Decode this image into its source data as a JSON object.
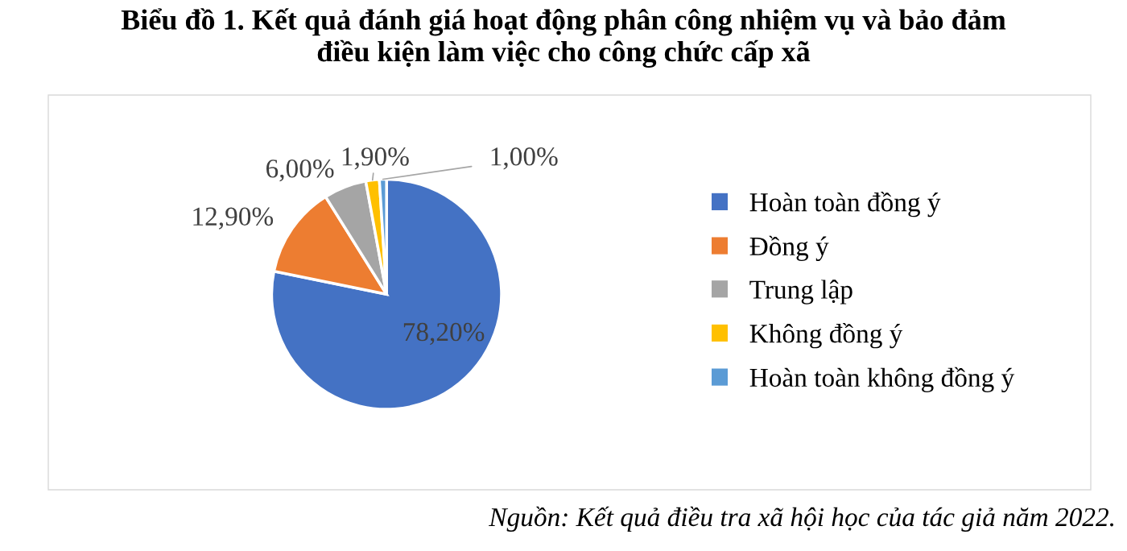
{
  "chart_data": {
    "type": "pie",
    "title": "Biểu đồ 1. Kết quả đánh giá hoạt động phân công nhiệm vụ và bảo đảm\nđiều kiện làm việc cho công chức cấp xã",
    "categories": [
      "Hoàn toàn đồng ý",
      "Đồng ý",
      "Trung lập",
      "Không đồng ý",
      "Hoàn toàn không đồng ý"
    ],
    "values": [
      78.2,
      12.9,
      6.0,
      1.9,
      1.0
    ],
    "colors": [
      "#4472c4",
      "#ed7d31",
      "#a5a5a5",
      "#ffc000",
      "#5b9bd5"
    ],
    "value_labels": [
      "78,20%",
      "12,90%",
      "6,00%",
      "1,90%",
      "1,00%"
    ],
    "legend": "right",
    "annotations": [
      "Nguồn: Kết quả điều tra xã hội học của tác giả năm 2022."
    ]
  }
}
